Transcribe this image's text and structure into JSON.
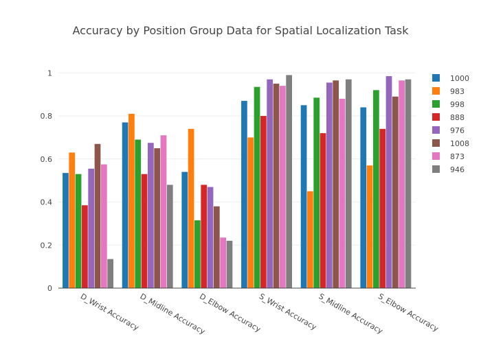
{
  "chart_data": {
    "type": "bar",
    "title": "Accuracy by Position Group Data for Spatial Localization Task",
    "xlabel": "",
    "ylabel": "",
    "ylim": [
      0,
      1.02
    ],
    "yticks": [
      "0",
      "0.2",
      "0.4",
      "0.6",
      "0.8",
      "1"
    ],
    "grid": true,
    "legend_position": "right",
    "categories": [
      "D_Wrist Accuracy",
      "D_Midline Accuracy",
      "D_Elbow Accuracy",
      "S_Wrist Accuracy",
      "S_Midline Accuracy",
      "S_Elbow Accuracy"
    ],
    "series": [
      {
        "name": "1000",
        "color": "#1f77b4",
        "values": [
          0.535,
          0.77,
          0.54,
          0.87,
          0.85,
          0.84
        ]
      },
      {
        "name": "983",
        "color": "#ff7f0e",
        "values": [
          0.63,
          0.81,
          0.74,
          0.7,
          0.45,
          0.57
        ]
      },
      {
        "name": "998",
        "color": "#2ca02c",
        "values": [
          0.53,
          0.69,
          0.315,
          0.935,
          0.885,
          0.92
        ]
      },
      {
        "name": "888",
        "color": "#d62728",
        "values": [
          0.385,
          0.53,
          0.48,
          0.8,
          0.72,
          0.74
        ]
      },
      {
        "name": "976",
        "color": "#9467bd",
        "values": [
          0.555,
          0.675,
          0.47,
          0.97,
          0.955,
          0.985
        ]
      },
      {
        "name": "1008",
        "color": "#8c564b",
        "values": [
          0.67,
          0.65,
          0.38,
          0.95,
          0.965,
          0.89
        ]
      },
      {
        "name": "873",
        "color": "#e377c2",
        "values": [
          0.575,
          0.71,
          0.235,
          0.94,
          0.88,
          0.965
        ]
      },
      {
        "name": "946",
        "color": "#7f7f7f",
        "values": [
          0.135,
          0.48,
          0.22,
          0.99,
          0.97,
          0.97
        ]
      }
    ]
  }
}
